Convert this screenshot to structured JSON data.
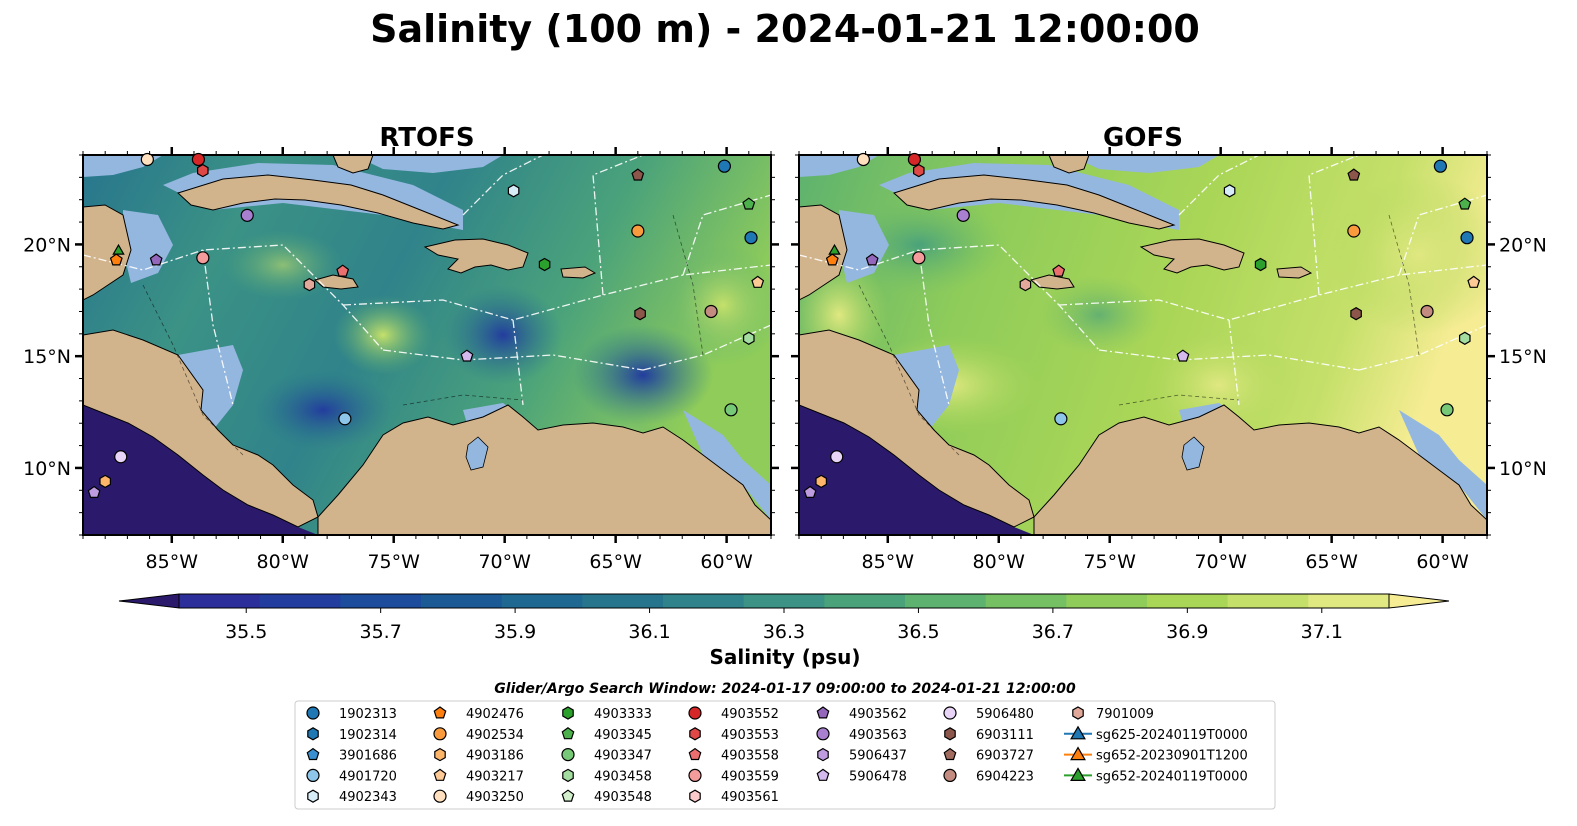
{
  "title": "Salinity (100 m) - 2024-01-21 12:00:00",
  "panels": [
    {
      "title": "RTOFS",
      "model": "rtofs"
    },
    {
      "title": "GOFS",
      "model": "gofs"
    }
  ],
  "axes": {
    "lon_ticks": [
      "85°W",
      "80°W",
      "75°W",
      "70°W",
      "65°W",
      "60°W"
    ],
    "lat_ticks": [
      "20°N",
      "15°N",
      "10°N"
    ],
    "lon_range": [
      -89,
      -58
    ],
    "lat_range": [
      7,
      24
    ]
  },
  "colorbar": {
    "label": "Salinity (psu)",
    "ticks": [
      "35.5",
      "35.7",
      "35.9",
      "36.1",
      "36.3",
      "36.5",
      "36.7",
      "36.9",
      "37.1"
    ],
    "range": [
      35.4,
      37.2
    ],
    "colors": [
      "#2b1a6c",
      "#2c2f9a",
      "#233d9e",
      "#1d4c9d",
      "#1c5a96",
      "#1f6891",
      "#27758d",
      "#30838a",
      "#3b9285",
      "#4aa27b",
      "#5db26f",
      "#75c063",
      "#8fcc5a",
      "#aad657",
      "#c5e06a",
      "#e0e881",
      "#f5ec93"
    ]
  },
  "legend": {
    "title": "Glider/Argo Search Window: 2024-01-17 09:00:00 to 2024-01-21 12:00:00",
    "columns": [
      [
        {
          "label": "1902313",
          "marker": "circle",
          "color": "#1f77b4"
        },
        {
          "label": "1902314",
          "marker": "hexagon",
          "color": "#1f77b4"
        },
        {
          "label": "3901686",
          "marker": "pentagon",
          "color": "#3a8fd0"
        },
        {
          "label": "4901720",
          "marker": "circle",
          "color": "#8ec6ea"
        },
        {
          "label": "4902343",
          "marker": "hexagon",
          "color": "#d6ecf7"
        }
      ],
      [
        {
          "label": "4902476",
          "marker": "pentagon",
          "color": "#ff7f0e"
        },
        {
          "label": "4902534",
          "marker": "circle",
          "color": "#f99b3d"
        },
        {
          "label": "4903186",
          "marker": "hexagon",
          "color": "#fdb56a"
        },
        {
          "label": "4903217",
          "marker": "pentagon",
          "color": "#fdc995"
        },
        {
          "label": "4903250",
          "marker": "circle",
          "color": "#fee0bf"
        }
      ],
      [
        {
          "label": "4903333",
          "marker": "hexagon",
          "color": "#2ca02c"
        },
        {
          "label": "4903345",
          "marker": "pentagon",
          "color": "#4cb04c"
        },
        {
          "label": "4903347",
          "marker": "circle",
          "color": "#77c877"
        },
        {
          "label": "4903458",
          "marker": "hexagon",
          "color": "#a4dda0"
        },
        {
          "label": "4903548",
          "marker": "pentagon",
          "color": "#d2f0cc"
        }
      ],
      [
        {
          "label": "4903552",
          "marker": "circle",
          "color": "#d62728"
        },
        {
          "label": "4903553",
          "marker": "hexagon",
          "color": "#e04848"
        },
        {
          "label": "4903558",
          "marker": "pentagon",
          "color": "#ec6f6f"
        },
        {
          "label": "4903559",
          "marker": "circle",
          "color": "#f49b9b"
        },
        {
          "label": "4903561",
          "marker": "hexagon",
          "color": "#fbcaca"
        }
      ],
      [
        {
          "label": "4903562",
          "marker": "pentagon",
          "color": "#9467bd"
        },
        {
          "label": "4903563",
          "marker": "circle",
          "color": "#a97fd0"
        },
        {
          "label": "5906437",
          "marker": "hexagon",
          "color": "#bf9be0"
        },
        {
          "label": "5906478",
          "marker": "pentagon",
          "color": "#d4b9ee"
        },
        {
          "label": "",
          "marker": "none",
          "color": "#ffffff"
        }
      ],
      [
        {
          "label": "5906480",
          "marker": "circle",
          "color": "#e7d4f7"
        },
        {
          "label": "6903111",
          "marker": "hexagon",
          "color": "#8c564b"
        },
        {
          "label": "6903727",
          "marker": "pentagon",
          "color": "#a26b5f"
        },
        {
          "label": "6904223",
          "marker": "circle",
          "color": "#c48c80"
        },
        {
          "label": "",
          "marker": "none",
          "color": "#ffffff"
        }
      ],
      [
        {
          "label": "7901009",
          "marker": "hexagon",
          "color": "#e2a899"
        },
        {
          "label": "sg625-20240119T0000",
          "marker": "triangle-line",
          "color": "#1f77b4"
        },
        {
          "label": "sg652-20230901T1200",
          "marker": "triangle-line",
          "color": "#ff7f0e"
        },
        {
          "label": "sg652-20240119T0000",
          "marker": "triangle-line",
          "color": "#2ca02c"
        },
        {
          "label": "",
          "marker": "none",
          "color": "#ffffff"
        }
      ]
    ]
  },
  "floats": [
    {
      "lon": -86.1,
      "lat": 23.8,
      "marker": "circle",
      "color": "#fee0bf"
    },
    {
      "lon": -83.8,
      "lat": 23.8,
      "marker": "circle",
      "color": "#d62728"
    },
    {
      "lon": -83.6,
      "lat": 23.3,
      "marker": "hexagon",
      "color": "#e04848"
    },
    {
      "lon": -81.6,
      "lat": 21.3,
      "marker": "circle",
      "color": "#a97fd0"
    },
    {
      "lon": -83.6,
      "lat": 19.4,
      "marker": "circle",
      "color": "#f49b9b"
    },
    {
      "lon": -85.7,
      "lat": 19.3,
      "marker": "pentagon",
      "color": "#9467bd"
    },
    {
      "lon": -87.5,
      "lat": 19.3,
      "marker": "pentagon",
      "color": "#ff7f0e"
    },
    {
      "lon": -87.4,
      "lat": 19.7,
      "marker": "triangle",
      "color": "#2ca02c"
    },
    {
      "lon": -78.8,
      "lat": 18.2,
      "marker": "hexagon",
      "color": "#e2a899"
    },
    {
      "lon": -77.3,
      "lat": 18.8,
      "marker": "pentagon",
      "color": "#ec6f6f"
    },
    {
      "lon": -69.6,
      "lat": 22.4,
      "marker": "hexagon",
      "color": "#d6ecf7"
    },
    {
      "lon": -68.2,
      "lat": 19.1,
      "marker": "hexagon",
      "color": "#2ca02c"
    },
    {
      "lon": -64.0,
      "lat": 23.1,
      "marker": "pentagon",
      "color": "#8c564b"
    },
    {
      "lon": -64.0,
      "lat": 20.6,
      "marker": "circle",
      "color": "#f99b3d"
    },
    {
      "lon": -60.1,
      "lat": 23.5,
      "marker": "circle",
      "color": "#1f77b4"
    },
    {
      "lon": -59.0,
      "lat": 21.8,
      "marker": "pentagon",
      "color": "#4cb04c"
    },
    {
      "lon": -58.9,
      "lat": 20.3,
      "marker": "circle",
      "color": "#1f77b4"
    },
    {
      "lon": -58.6,
      "lat": 18.3,
      "marker": "pentagon",
      "color": "#fdc995"
    },
    {
      "lon": -63.9,
      "lat": 16.9,
      "marker": "hexagon",
      "color": "#8c564b"
    },
    {
      "lon": -60.7,
      "lat": 17.0,
      "marker": "circle",
      "color": "#c48c80"
    },
    {
      "lon": -59.0,
      "lat": 15.8,
      "marker": "hexagon",
      "color": "#a4dda0"
    },
    {
      "lon": -71.7,
      "lat": 15.0,
      "marker": "pentagon",
      "color": "#d4b9ee"
    },
    {
      "lon": -77.2,
      "lat": 12.2,
      "marker": "circle",
      "color": "#8ec6ea"
    },
    {
      "lon": -59.8,
      "lat": 12.6,
      "marker": "circle",
      "color": "#77c877"
    },
    {
      "lon": -87.3,
      "lat": 10.5,
      "marker": "circle",
      "color": "#e7d4f7"
    },
    {
      "lon": -88.0,
      "lat": 9.4,
      "marker": "hexagon",
      "color": "#fdb56a"
    },
    {
      "lon": -88.5,
      "lat": 8.9,
      "marker": "pentagon",
      "color": "#bf9be0"
    }
  ]
}
